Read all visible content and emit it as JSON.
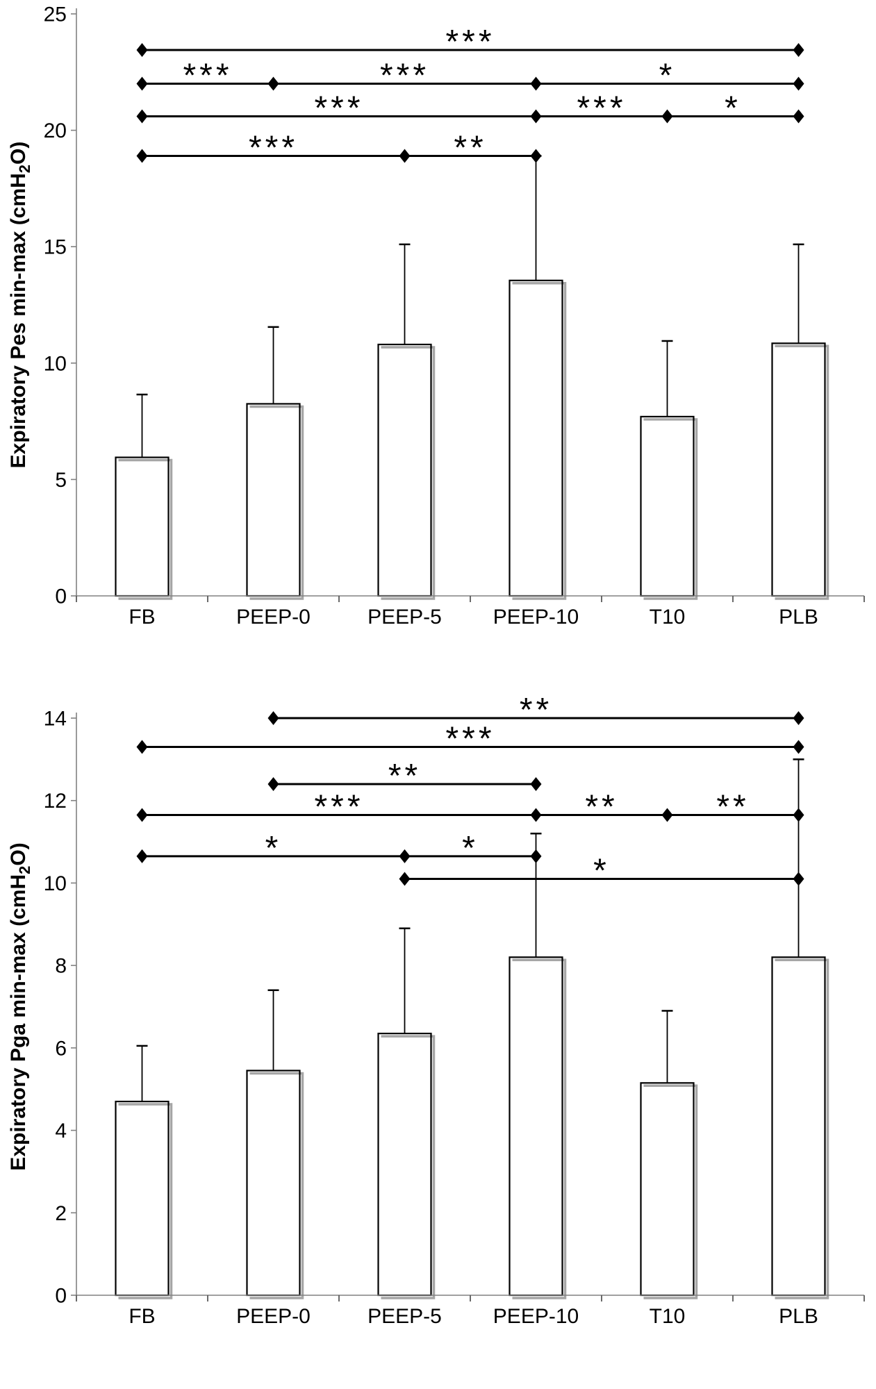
{
  "figure_title": "",
  "colors": {
    "background": "#ffffff",
    "bar_fill": "#ffffff",
    "bar_stroke": "#000000",
    "bar_shadow": "#a6a6a6",
    "axis_line": "#808080",
    "x_tick": "#595959",
    "y_tick": "#808080",
    "error_bar": "#000000",
    "significance": "#000000",
    "text": "#000000"
  },
  "chart_data": [
    {
      "type": "bar",
      "title": "",
      "xlabel": "",
      "ylabel": "Expiratory Pes min-max (cmH2O)",
      "ylabel_parts": {
        "pre": "Expiratory Pes min-max (cmH",
        "sub": "2",
        "post": "O)"
      },
      "categories": [
        "FB",
        "PEEP-0",
        "PEEP-5",
        "PEEP-10",
        "T10",
        "PLB"
      ],
      "values": [
        5.95,
        8.25,
        10.8,
        13.55,
        7.7,
        10.85
      ],
      "error_tops": [
        8.65,
        11.55,
        15.1,
        18.9,
        10.95,
        15.1
      ],
      "ylim": [
        0,
        25
      ],
      "ytick_step": 5,
      "ytick_labels": [
        "0",
        "5",
        "10",
        "15",
        "20",
        "25"
      ],
      "grid": false,
      "legend": null,
      "significance_lines": [
        {
          "y": 23.45,
          "nodes": [
            "FB",
            "PLB"
          ],
          "labels": [
            "***"
          ]
        },
        {
          "y": 22.0,
          "nodes": [
            "FB",
            "PEEP-0",
            "PEEP-10",
            "PLB"
          ],
          "labels": [
            "***",
            "***",
            "*"
          ]
        },
        {
          "y": 20.6,
          "nodes": [
            "FB",
            "PEEP-10",
            "T10",
            "PLB"
          ],
          "labels": [
            "***",
            "***",
            "*"
          ]
        },
        {
          "y": 18.9,
          "nodes": [
            "FB",
            "PEEP-5",
            "PEEP-10"
          ],
          "labels": [
            "***",
            "**"
          ]
        }
      ]
    },
    {
      "type": "bar",
      "title": "",
      "xlabel": "",
      "ylabel": "Expiratory Pga min-max (cmH2O)",
      "ylabel_parts": {
        "pre": "Expiratory Pga min-max (cmH",
        "sub": "2",
        "post": "O)"
      },
      "categories": [
        "FB",
        "PEEP-0",
        "PEEP-5",
        "PEEP-10",
        "T10",
        "PLB"
      ],
      "values": [
        4.7,
        5.45,
        6.35,
        8.2,
        5.15,
        8.2
      ],
      "error_tops": [
        6.05,
        7.4,
        8.9,
        11.2,
        6.9,
        13.0
      ],
      "ylim": [
        0,
        14
      ],
      "ytick_step": 2,
      "ytick_labels": [
        "0",
        "2",
        "4",
        "6",
        "8",
        "10",
        "12",
        "14"
      ],
      "grid": false,
      "legend": null,
      "significance_lines": [
        {
          "y": 14.0,
          "nodes": [
            "PEEP-0",
            "PLB"
          ],
          "labels": [
            "**"
          ]
        },
        {
          "y": 13.3,
          "nodes": [
            "FB",
            "PLB"
          ],
          "labels": [
            "***"
          ]
        },
        {
          "y": 12.4,
          "nodes": [
            "PEEP-0",
            "PEEP-10"
          ],
          "labels": [
            "**"
          ]
        },
        {
          "y": 11.65,
          "nodes": [
            "FB",
            "PEEP-10",
            "T10",
            "PLB"
          ],
          "labels": [
            "***",
            "**",
            "**"
          ]
        },
        {
          "y": 10.65,
          "nodes": [
            "FB",
            "PEEP-5",
            "PEEP-10"
          ],
          "labels": [
            "*",
            "*"
          ]
        },
        {
          "y": 10.1,
          "nodes": [
            "PEEP-5",
            "PLB"
          ],
          "labels": [
            "*"
          ]
        }
      ]
    }
  ]
}
